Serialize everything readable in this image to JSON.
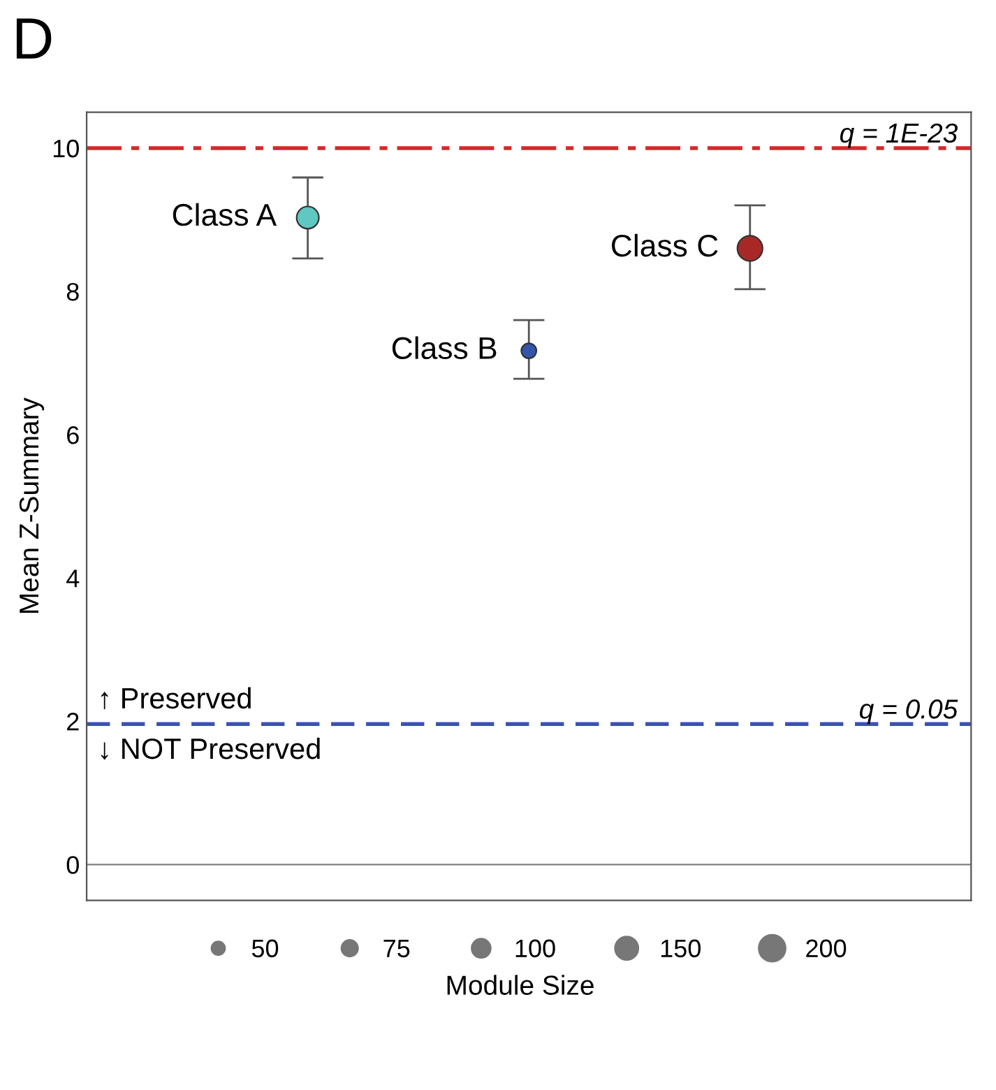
{
  "chart_data": {
    "type": "bubble",
    "title": "D",
    "ylabel": "Mean Z-Summary",
    "legend_title": "Module Size",
    "categories": [
      null,
      null,
      null
    ],
    "series": [
      {
        "name": "Class A",
        "color": "#5fc8c0",
        "values": [
          9.03,
          null,
          null
        ],
        "sizes": [
          140,
          null,
          null
        ],
        "errors": [
          [
            8.46,
            9.59
          ],
          null,
          null
        ]
      },
      {
        "name": "Class B",
        "color": "#3355aa",
        "values": [
          null,
          7.17,
          null
        ],
        "sizes": [
          null,
          65,
          null
        ],
        "errors": [
          null,
          [
            6.78,
            7.6
          ],
          null
        ]
      },
      {
        "name": "Class C",
        "color": "#a82828",
        "values": [
          null,
          null,
          8.6
        ],
        "sizes": [
          null,
          null,
          180
        ],
        "errors": [
          null,
          null,
          [
            8.03,
            9.2
          ]
        ]
      }
    ],
    "size_legend": [
      50,
      75,
      100,
      150,
      200
    ],
    "ylim": [
      -0.5,
      10.5
    ],
    "yticks": [
      0,
      2,
      4,
      6,
      8,
      10
    ],
    "ref_lines": [
      {
        "axis": "y",
        "value": 10,
        "label": null,
        "color": "#d42a2a",
        "line_style": "dashdot"
      },
      {
        "axis": "y",
        "value": 1.96,
        "label": null,
        "color": "#3a52b0",
        "line_style": "dashed"
      },
      {
        "axis": "y",
        "value": 0,
        "label": null,
        "color": "#808080",
        "line_style": "solid"
      }
    ],
    "annotations": [
      {
        "text": "q = 1E-23",
        "y": 10
      },
      {
        "text": "q = 0.05",
        "y": 1.96
      },
      "↑ Preserved",
      "↓ NOT Preserved"
    ],
    "marker": "circle",
    "grid": false,
    "tick_labels": "y"
  }
}
